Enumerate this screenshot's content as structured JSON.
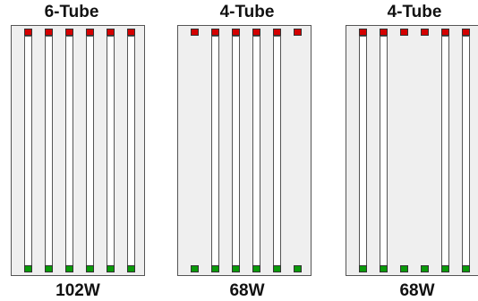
{
  "colors": {
    "top_cap": "#d40000",
    "bottom_cap": "#0a9a0a",
    "housing": "#efefef",
    "tube": "#ffffff"
  },
  "fixtures": [
    {
      "title": "6-Tube",
      "wattage": "102W",
      "slots": [
        1,
        1,
        1,
        1,
        1,
        1
      ]
    },
    {
      "title": "4-Tube",
      "wattage": "68W",
      "slots": [
        0,
        1,
        1,
        1,
        1,
        0
      ]
    },
    {
      "title": "4-Tube",
      "wattage": "68W",
      "slots": [
        1,
        1,
        0,
        0,
        1,
        1
      ]
    }
  ]
}
